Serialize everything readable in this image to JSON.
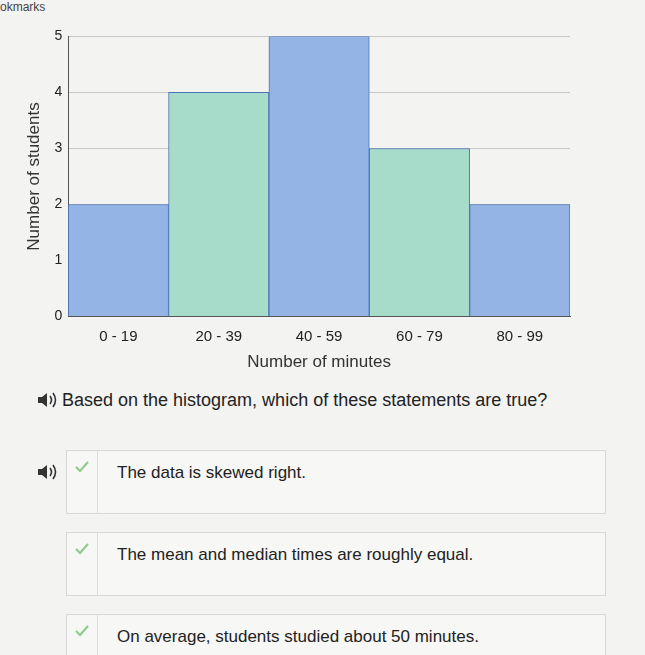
{
  "chart_data": {
    "type": "bar",
    "categories": [
      "0 - 19",
      "20 - 39",
      "40 - 59",
      "60 - 79",
      "80 - 99"
    ],
    "values": [
      2,
      4,
      5,
      3,
      2
    ],
    "colors": [
      "#94b4e6",
      "#a6dcc9",
      "#94b4e6",
      "#a6dcc9",
      "#94b4e6"
    ],
    "x_label": "Number of minutes",
    "y_label": "Number of students",
    "ylim": [
      0,
      5
    ],
    "yticks": [
      0,
      1,
      2,
      3,
      4,
      5
    ],
    "grid": true
  },
  "page": {
    "header": "okmarks",
    "question": "Based on the histogram, which of these statements are true?",
    "options": [
      "The data is skewed right.",
      "The mean and median times are roughly equal.",
      "On average, students studied about 50 minutes."
    ]
  }
}
